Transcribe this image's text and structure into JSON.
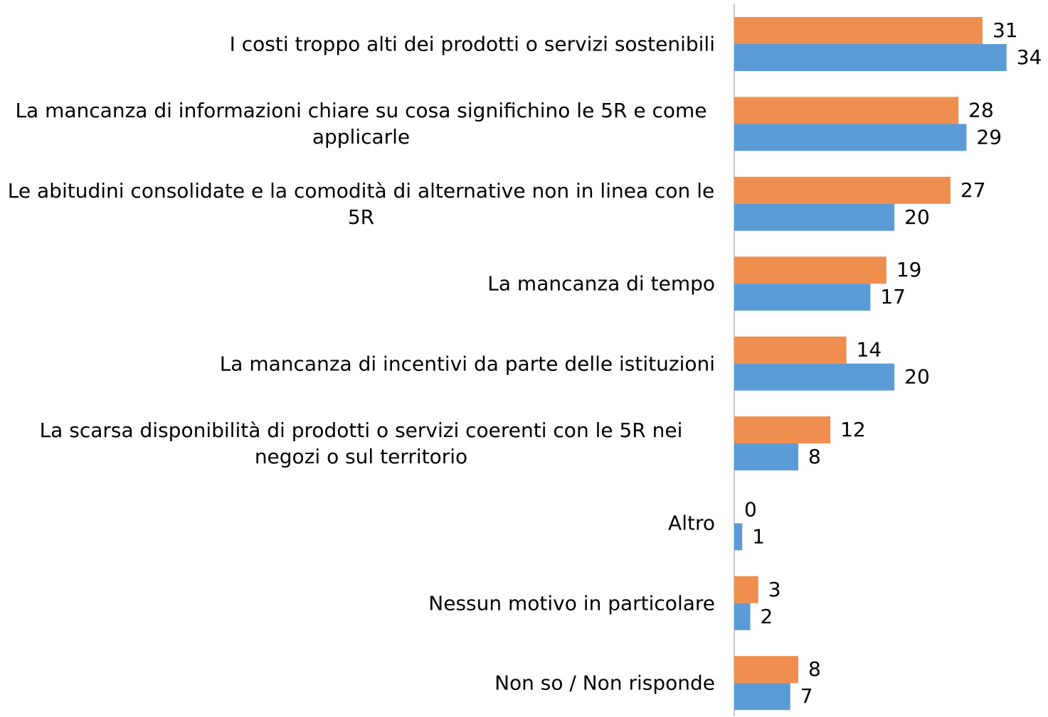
{
  "chart_data": {
    "type": "bar",
    "orientation": "horizontal",
    "categories": [
      "I costi troppo alti dei prodotti o servizi sostenibili",
      "La mancanza di informazioni chiare su cosa significhino le 5R e come applicarle",
      "Le abitudini consolidate e la comodità di alternative non in linea con le 5R",
      "La mancanza di tempo",
      "La mancanza di incentivi da parte delle istituzioni",
      "La scarsa disponibilità di prodotti o servizi coerenti con le 5R nei negozi o sul territorio",
      "Altro",
      "Nessun motivo in particolare",
      "Non so / Non risponde"
    ],
    "series": [
      {
        "color": "#ef8e4e",
        "values": [
          31,
          28,
          27,
          19,
          14,
          12,
          0,
          3,
          8
        ]
      },
      {
        "color": "#5b9bd5",
        "values": [
          34,
          29,
          20,
          17,
          20,
          8,
          1,
          2,
          7
        ]
      }
    ],
    "xlim": [
      0,
      39
    ]
  }
}
